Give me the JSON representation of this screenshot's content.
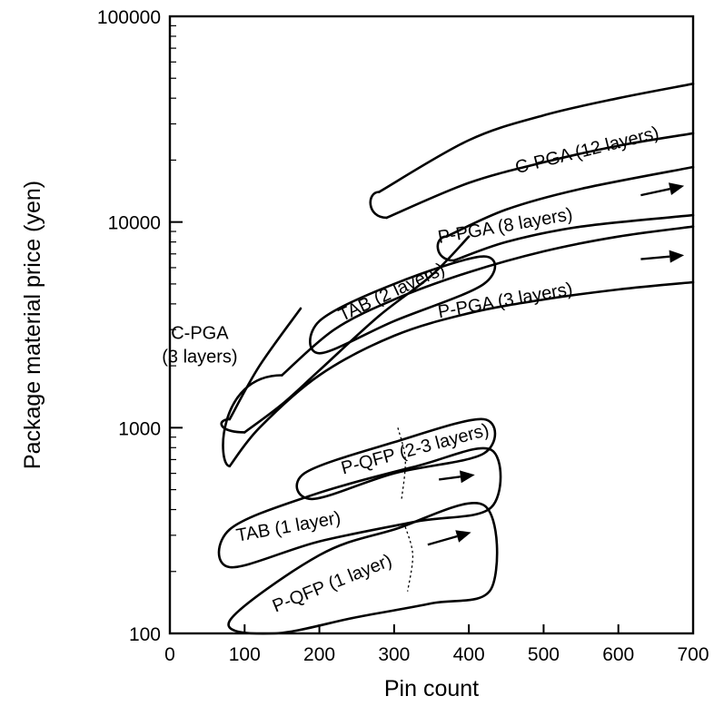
{
  "chart_data": {
    "type": "area",
    "title": "",
    "xlabel": "Pin count",
    "ylabel": "Package material price (yen)",
    "xlim": [
      0,
      700
    ],
    "ylim": [
      100,
      100000
    ],
    "yscale": "log",
    "grid": false,
    "legend": "none",
    "x_ticks": [
      0,
      100,
      200,
      300,
      400,
      500,
      600,
      700
    ],
    "x_tick_labels": [
      "0",
      "100",
      "200",
      "300",
      "400",
      "500",
      "600",
      "700"
    ],
    "y_ticks": [
      100,
      1000,
      10000,
      100000
    ],
    "y_tick_labels": [
      "100",
      "1000",
      "10000",
      "100000"
    ],
    "series": [
      {
        "name": "C-PGA (12 layers)",
        "label": "C-PGA (12 layers)",
        "kind": "band",
        "upper": [
          [
            280,
            14000
          ],
          [
            400,
            25000
          ],
          [
            500,
            33000
          ],
          [
            600,
            40000
          ],
          [
            700,
            47000
          ]
        ],
        "lower": [
          [
            290,
            10500
          ],
          [
            400,
            15500
          ],
          [
            500,
            19500
          ],
          [
            600,
            23500
          ],
          [
            700,
            27000
          ]
        ],
        "label_position": [
          560,
          21000
        ],
        "label_angle": -14,
        "arrow": false
      },
      {
        "name": "P-PGA (8 layers)",
        "label": "P-PGA (8 layers)",
        "kind": "band",
        "upper": [
          [
            370,
            8500
          ],
          [
            450,
            11500
          ],
          [
            550,
            14500
          ],
          [
            700,
            18500
          ]
        ],
        "lower": [
          [
            380,
            6500
          ],
          [
            450,
            8000
          ],
          [
            550,
            9500
          ],
          [
            700,
            10800
          ]
        ],
        "label_position": [
          450,
          9000
        ],
        "label_angle": -10,
        "arrow": true,
        "arrow_from": [
          630,
          13500
        ],
        "arrow_to": [
          688,
          15000
        ]
      },
      {
        "name": "P-PGA (3 layers)",
        "label": "P-PGA (3 layers)",
        "kind": "band",
        "upper": [
          [
            150,
            1800
          ],
          [
            220,
            3000
          ],
          [
            300,
            4200
          ],
          [
            400,
            5700
          ],
          [
            500,
            7200
          ],
          [
            600,
            8500
          ],
          [
            700,
            9500
          ]
        ],
        "lower": [
          [
            80,
            650
          ],
          [
            120,
            1000
          ],
          [
            200,
            1800
          ],
          [
            300,
            2800
          ],
          [
            400,
            3600
          ],
          [
            500,
            4200
          ],
          [
            600,
            4700
          ],
          [
            700,
            5100
          ]
        ],
        "label_position": [
          450,
          3900
        ],
        "label_angle": -10,
        "arrow": true,
        "arrow_from": [
          630,
          6600
        ],
        "arrow_to": [
          688,
          6900
        ]
      },
      {
        "name": "C-PGA (3 layers)",
        "label": "C-PGA\n(3 layers)",
        "kind": "band",
        "upper": [
          [
            80,
            1100
          ],
          [
            120,
            2000
          ],
          [
            175,
            3800
          ]
        ],
        "lower": [
          [
            100,
            950
          ],
          [
            150,
            1300
          ],
          [
            200,
            1900
          ],
          [
            280,
            3500
          ],
          [
            350,
            5500
          ],
          [
            400,
            8500
          ]
        ],
        "label_position": [
          40,
          2700
        ],
        "label_angle": 0,
        "arrow": false
      },
      {
        "name": "TAB (2 layers)",
        "label": "TAB (2 layers)",
        "kind": "region",
        "upper": [
          [
            200,
            3300
          ],
          [
            300,
            5000
          ],
          [
            420,
            6800
          ]
        ],
        "lower": [
          [
            200,
            2300
          ],
          [
            300,
            3300
          ],
          [
            420,
            5000
          ]
        ],
        "label_position": [
          300,
          4300
        ],
        "label_angle": -25,
        "arrow": false
      },
      {
        "name": "P-QFP (2-3 layers)",
        "label": "P-QFP (2-3 layers)",
        "kind": "region",
        "upper": [
          [
            180,
            600
          ],
          [
            300,
            850
          ],
          [
            420,
            1100
          ]
        ],
        "lower": [
          [
            190,
            450
          ],
          [
            300,
            600
          ],
          [
            420,
            750
          ]
        ],
        "label_position": [
          330,
          740
        ],
        "label_angle": -15,
        "arrow": true,
        "arrow_from": [
          360,
          560
        ],
        "arrow_to": [
          408,
          590
        ]
      },
      {
        "name": "TAB (1 layer)",
        "label": "TAB (1 layer)",
        "kind": "region",
        "upper": [
          [
            80,
            320
          ],
          [
            190,
            470
          ],
          [
            330,
            650
          ],
          [
            430,
            780
          ]
        ],
        "lower": [
          [
            80,
            210
          ],
          [
            200,
            280
          ],
          [
            330,
            350
          ],
          [
            430,
            410
          ]
        ],
        "label_position": [
          160,
          310
        ],
        "label_angle": -10,
        "arrow": false
      },
      {
        "name": "P-QFP (1 layer)",
        "label": "P-QFP (1 layer)",
        "kind": "region",
        "upper": [
          [
            80,
            115
          ],
          [
            200,
            240
          ],
          [
            300,
            320
          ],
          [
            420,
            420
          ]
        ],
        "lower": [
          [
            140,
            100
          ],
          [
            250,
            120
          ],
          [
            350,
            140
          ],
          [
            430,
            165
          ]
        ],
        "label_position": [
          220,
          165
        ],
        "label_angle": -22,
        "arrow": true,
        "arrow_from": [
          345,
          270
        ],
        "arrow_to": [
          403,
          310
        ]
      }
    ],
    "dividers": [
      {
        "note": "P-QFP (2-3 layers)",
        "points": [
          [
            305,
            1000
          ],
          [
            315,
            700
          ],
          [
            310,
            450
          ]
        ]
      },
      {
        "note": "P-QFP (1 layer)",
        "points": [
          [
            315,
            330
          ],
          [
            325,
            240
          ],
          [
            318,
            160
          ]
        ]
      }
    ]
  }
}
